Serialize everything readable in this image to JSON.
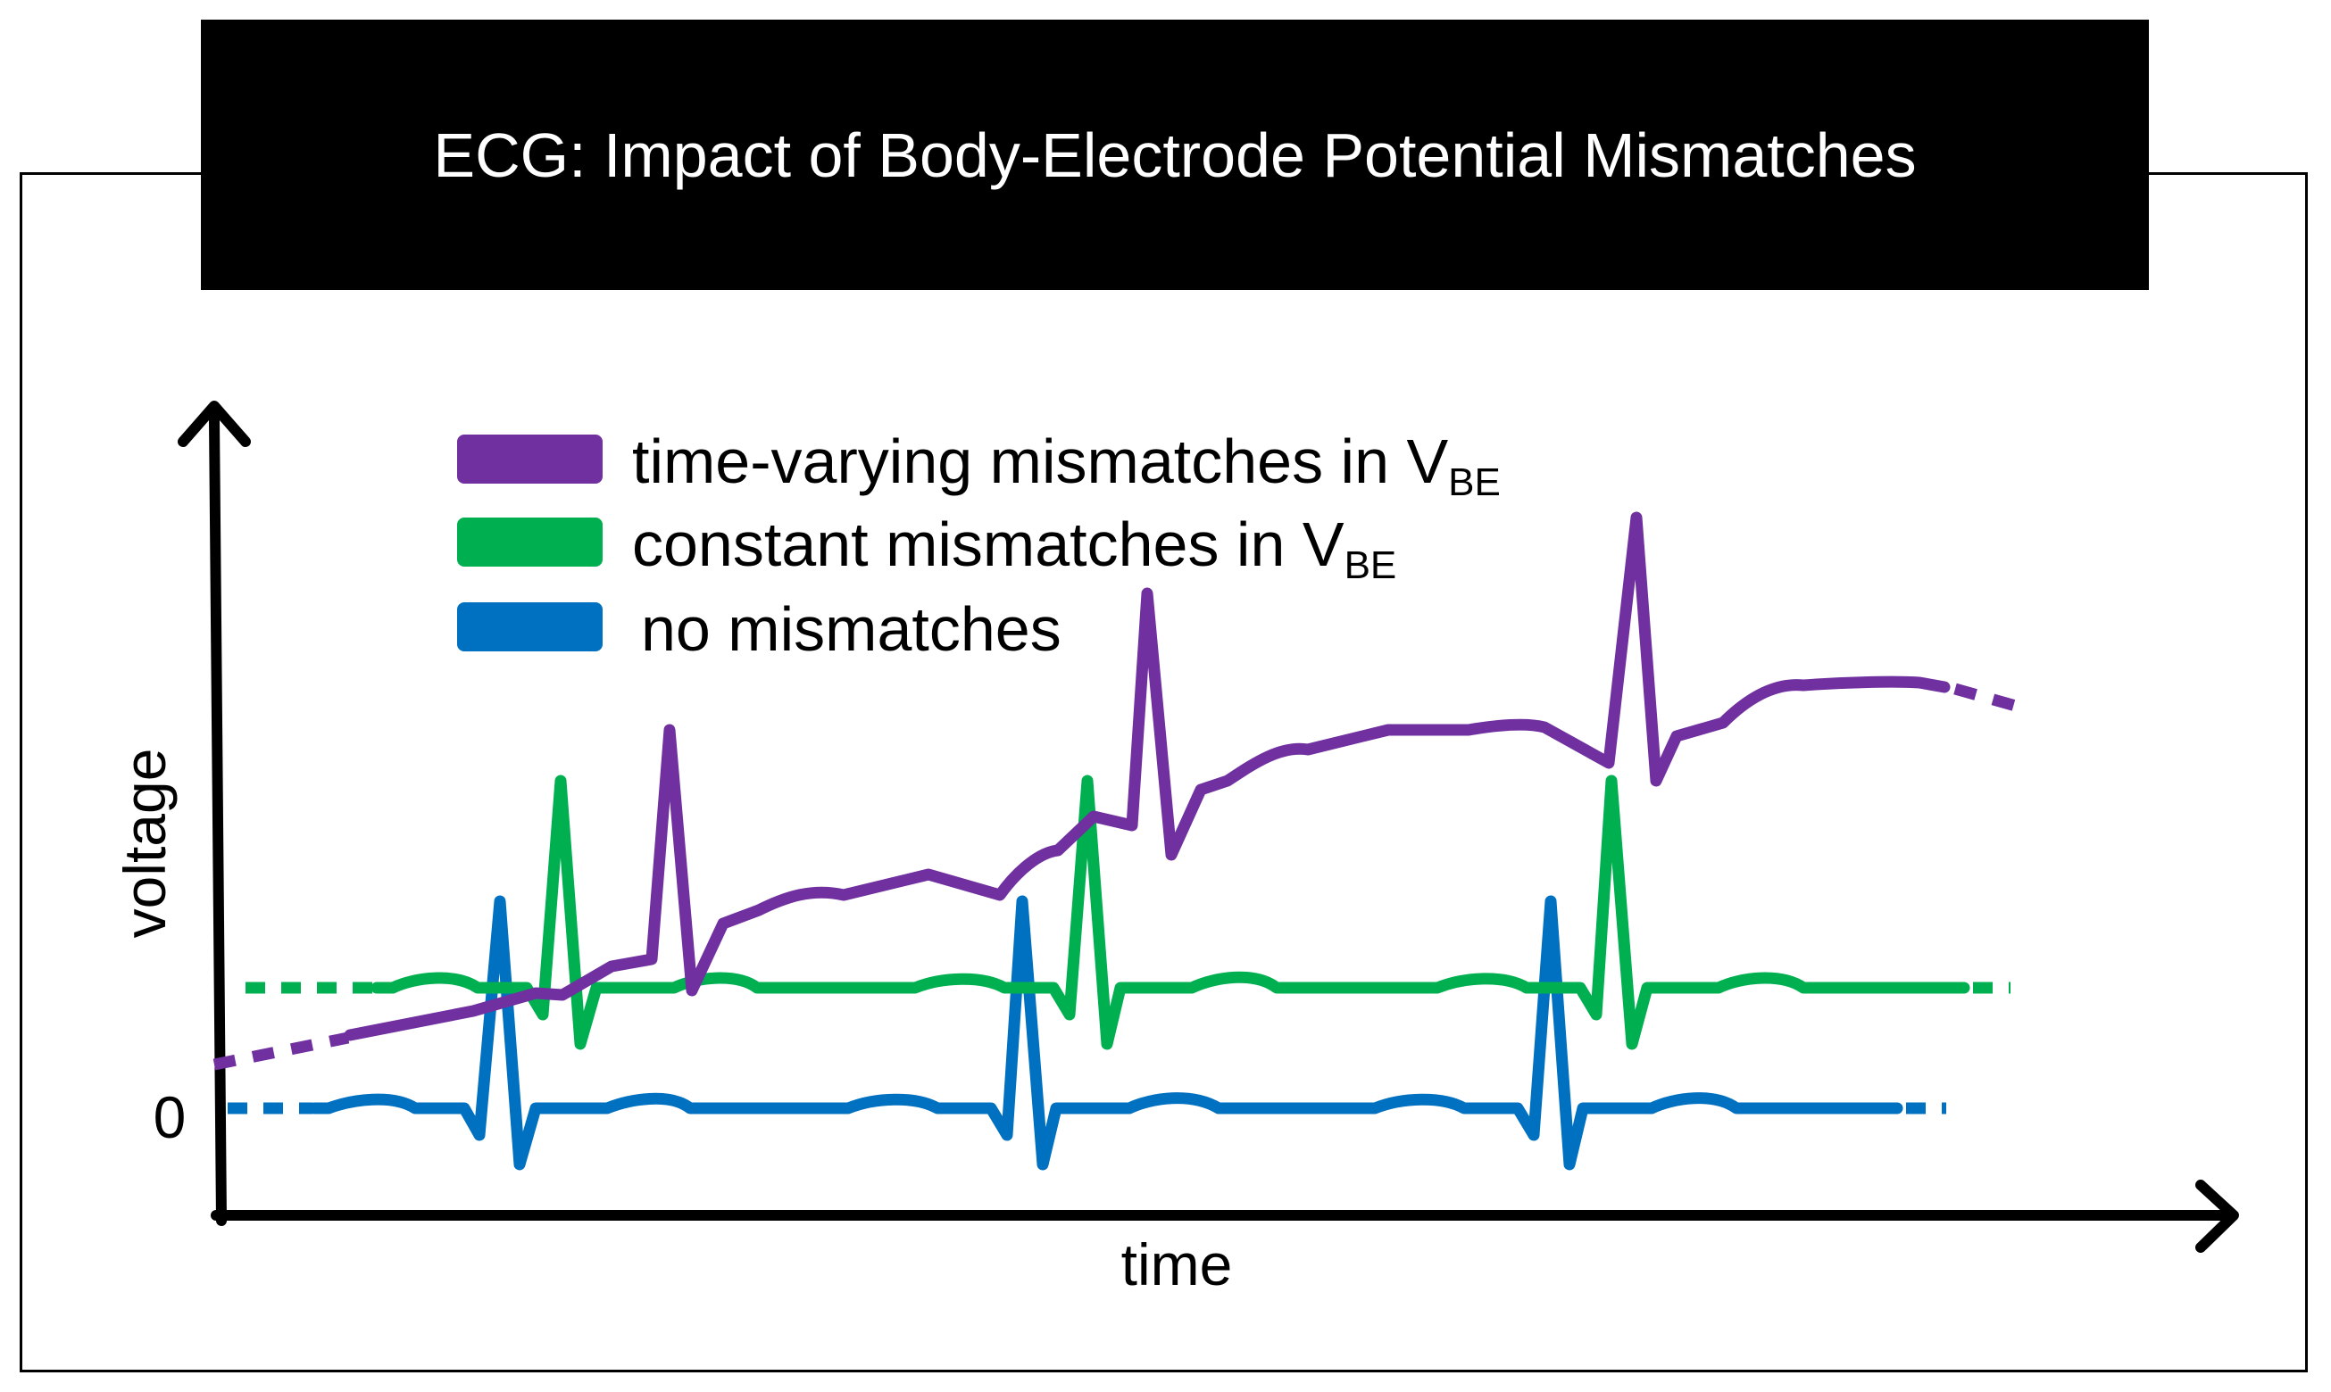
{
  "title": "ECG: Impact of Body-Electrode Potential Mismatches",
  "axes": {
    "y_label": "voltage",
    "x_label": "time",
    "zero_label": "0"
  },
  "legend": [
    {
      "key": "time_varying",
      "text": "time-varying mismatches in V",
      "subscript": "BE",
      "color": "#7030a0"
    },
    {
      "key": "constant",
      "text": "constant mismatches in V",
      "subscript": "BE",
      "color": "#00b050"
    },
    {
      "key": "none",
      "text": "no mismatches",
      "subscript": "",
      "color": "#0070c0"
    }
  ],
  "colors": {
    "purple": "#7030a0",
    "green": "#00b050",
    "blue": "#0070c0",
    "axis": "#000000"
  }
}
